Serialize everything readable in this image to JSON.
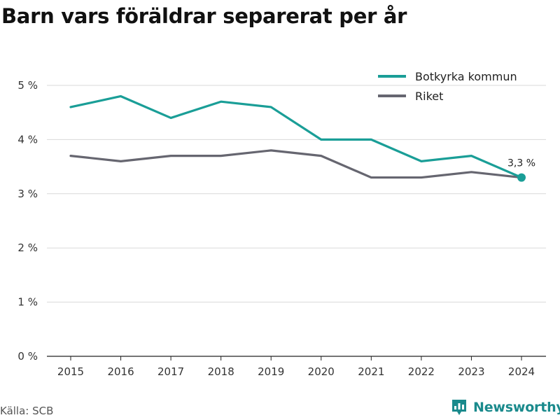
{
  "title": "Barn vars föräldrar separerat per år",
  "source": "Källa: SCB",
  "brand": "Newsworthy",
  "colors": {
    "brand": "#1a8a8c",
    "botkyrka": "#1a9e97",
    "riket": "#666670",
    "grid": "#d9d9d9"
  },
  "chart_data": {
    "type": "line",
    "title": "Barn vars föräldrar separerat per år",
    "x": [
      "2015",
      "2016",
      "2017",
      "2018",
      "2019",
      "2020",
      "2021",
      "2022",
      "2023",
      "2024"
    ],
    "ylim": [
      0,
      5
    ],
    "yticks": [
      0,
      1,
      2,
      3,
      4,
      5
    ],
    "ytick_labels": [
      "0 %",
      "1 %",
      "2 %",
      "3 %",
      "4 %",
      "5 %"
    ],
    "grid": true,
    "legend_position": "top-right",
    "series": [
      {
        "name": "Botkyrka kommun",
        "color": "#1a9e97",
        "values": [
          4.6,
          4.8,
          4.4,
          4.7,
          4.6,
          4.0,
          4.0,
          3.6,
          3.7,
          3.3
        ]
      },
      {
        "name": "Riket",
        "color": "#666670",
        "values": [
          3.7,
          3.6,
          3.7,
          3.7,
          3.8,
          3.7,
          3.3,
          3.3,
          3.4,
          3.3
        ]
      }
    ],
    "annotation": {
      "series": 0,
      "index": 9,
      "label": "3,3 %"
    }
  }
}
